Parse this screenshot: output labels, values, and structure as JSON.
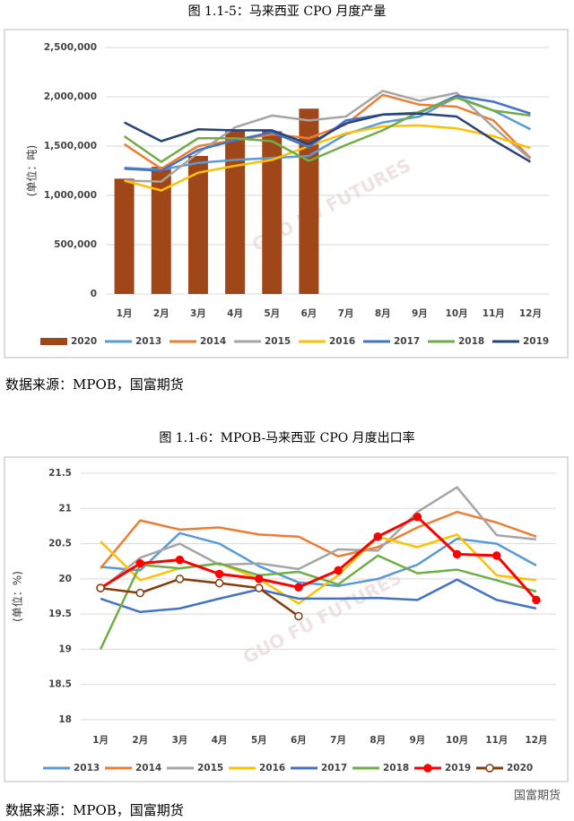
{
  "chart_data": [
    {
      "type": "bar",
      "title": "图 1.1-5：马来西亚 CPO 月度产量",
      "y_label": "(单位：吨)",
      "categories": [
        "1月",
        "2月",
        "3月",
        "4月",
        "5月",
        "6月",
        "7月",
        "8月",
        "9月",
        "10月",
        "11月",
        "12月"
      ],
      "ylim": [
        0,
        2500000
      ],
      "yticks": [
        0,
        {
          "value": 500000,
          "label": "500,000"
        },
        {
          "value": 1000000,
          "label": "1,000,000"
        },
        {
          "value": 1500000,
          "label": "1,500,000"
        },
        {
          "value": 2000000,
          "label": "2,000,000"
        },
        {
          "value": 2500000,
          "label": "2,500,000"
        }
      ],
      "grid": true,
      "legend": "bottom",
      "series": [
        {
          "name": "2020",
          "type": "bar",
          "color": "#A0471A",
          "values": [
            1170000,
            1290000,
            1400000,
            1650000,
            1650000,
            1880000,
            null,
            null,
            null,
            null,
            null,
            null
          ]
        },
        {
          "name": "2013",
          "type": "line",
          "color": "#5B9BD5",
          "values": [
            1280000,
            1260000,
            1330000,
            1360000,
            1380000,
            1400000,
            1620000,
            1740000,
            1800000,
            2000000,
            1860000,
            1670000
          ]
        },
        {
          "name": "2014",
          "type": "line",
          "color": "#ED7D31",
          "values": [
            1520000,
            1270000,
            1500000,
            1560000,
            1620000,
            1580000,
            1720000,
            2020000,
            1920000,
            1900000,
            1760000,
            1380000
          ]
        },
        {
          "name": "2015",
          "type": "line",
          "color": "#A5A5A5",
          "values": [
            1150000,
            1140000,
            1430000,
            1690000,
            1810000,
            1760000,
            1800000,
            2060000,
            1960000,
            2040000,
            1690000,
            1370000
          ]
        },
        {
          "name": "2016",
          "type": "line",
          "color": "#FFC000",
          "values": [
            1150000,
            1050000,
            1230000,
            1300000,
            1360000,
            1500000,
            1630000,
            1700000,
            1710000,
            1680000,
            1600000,
            1480000
          ]
        },
        {
          "name": "2017",
          "type": "line",
          "color": "#4472C4",
          "values": [
            1270000,
            1250000,
            1460000,
            1560000,
            1640000,
            1490000,
            1760000,
            1820000,
            1840000,
            2010000,
            1950000,
            1830000
          ]
        },
        {
          "name": "2018",
          "type": "line",
          "color": "#70AD47",
          "values": [
            1600000,
            1340000,
            1580000,
            1580000,
            1550000,
            1350000,
            1510000,
            1660000,
            1850000,
            1990000,
            1860000,
            1810000
          ]
        },
        {
          "name": "2019",
          "type": "line",
          "color": "#264478",
          "values": [
            1740000,
            1550000,
            1670000,
            1660000,
            1660000,
            1520000,
            1730000,
            1820000,
            1830000,
            1800000,
            1560000,
            1340000
          ]
        }
      ]
    },
    {
      "type": "line",
      "title": "图 1.1-6：MPOB-马来西亚 CPO 月度出口率",
      "y_label": "(单位：%)",
      "categories": [
        "1月",
        "2月",
        "3月",
        "4月",
        "5月",
        "6月",
        "7月",
        "8月",
        "9月",
        "10月",
        "11月",
        "12月"
      ],
      "ylim": [
        18,
        21.5
      ],
      "yticks": [
        18,
        18.5,
        19,
        19.5,
        20,
        20.5,
        21,
        21.5
      ],
      "grid": true,
      "legend": "bottom",
      "series": [
        {
          "name": "2013",
          "color": "#5B9BD5",
          "values": [
            20.17,
            20.12,
            20.65,
            20.5,
            20.18,
            19.95,
            19.9,
            20.0,
            20.2,
            20.57,
            20.5,
            20.19
          ]
        },
        {
          "name": "2014",
          "color": "#ED7D31",
          "values": [
            20.15,
            20.83,
            20.7,
            20.73,
            20.63,
            20.6,
            20.32,
            20.45,
            20.73,
            20.95,
            20.8,
            20.6
          ]
        },
        {
          "name": "2015",
          "color": "#A5A5A5",
          "values": [
            19.85,
            20.3,
            20.5,
            20.2,
            20.22,
            20.14,
            20.42,
            20.4,
            20.95,
            21.3,
            20.62,
            20.56
          ]
        },
        {
          "name": "2016",
          "color": "#FFC000",
          "values": [
            20.53,
            19.98,
            20.15,
            20.22,
            20.0,
            19.65,
            20.05,
            20.6,
            20.45,
            20.63,
            20.05,
            19.98
          ]
        },
        {
          "name": "2017",
          "color": "#4472C4",
          "values": [
            19.72,
            19.53,
            19.58,
            19.72,
            19.85,
            19.72,
            19.72,
            19.73,
            19.7,
            19.99,
            19.7,
            19.58
          ]
        },
        {
          "name": "2018",
          "color": "#70AD47",
          "values": [
            19.0,
            20.2,
            20.15,
            20.22,
            20.05,
            20.1,
            19.92,
            20.33,
            20.08,
            20.13,
            19.98,
            19.82
          ]
        },
        {
          "name": "2019",
          "color": "#FF0000",
          "markers": "filled",
          "values": [
            19.87,
            20.22,
            20.27,
            20.07,
            20.0,
            19.88,
            20.12,
            20.6,
            20.88,
            20.35,
            20.33,
            19.7
          ]
        },
        {
          "name": "2020",
          "color": "#843C0C",
          "markers": "hollow",
          "values": [
            19.87,
            19.8,
            20.0,
            19.94,
            19.87,
            19.47,
            null,
            null,
            null,
            null,
            null,
            null
          ]
        }
      ]
    }
  ],
  "sources": [
    "数据来源：MPOB，国富期货",
    "数据来源：MPOB，国富期货"
  ],
  "watermark": "GUO FU FUTURES",
  "brand": "国富期货"
}
